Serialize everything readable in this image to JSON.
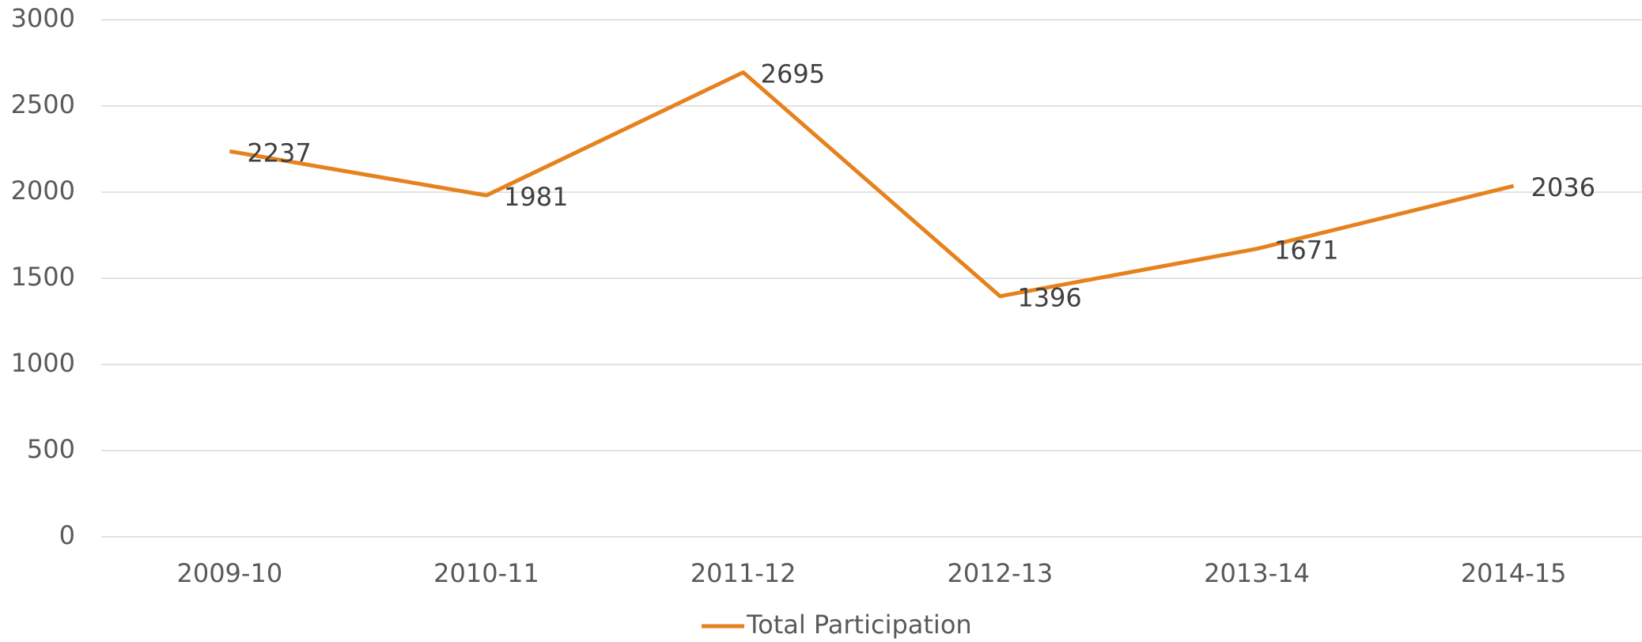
{
  "chart_data": {
    "type": "line",
    "categories": [
      "2009-10",
      "2010-11",
      "2011-12",
      "2012-13",
      "2013-14",
      "2014-15"
    ],
    "series": [
      {
        "name": "Total Participation",
        "color": "#e6821e",
        "values": [
          2237,
          1981,
          2695,
          1396,
          1671,
          2036
        ]
      }
    ],
    "ylim": [
      0,
      3000
    ],
    "yticks": [
      0,
      500,
      1000,
      1500,
      2000,
      2500,
      3000
    ],
    "grid": true,
    "legend": "bottom"
  }
}
